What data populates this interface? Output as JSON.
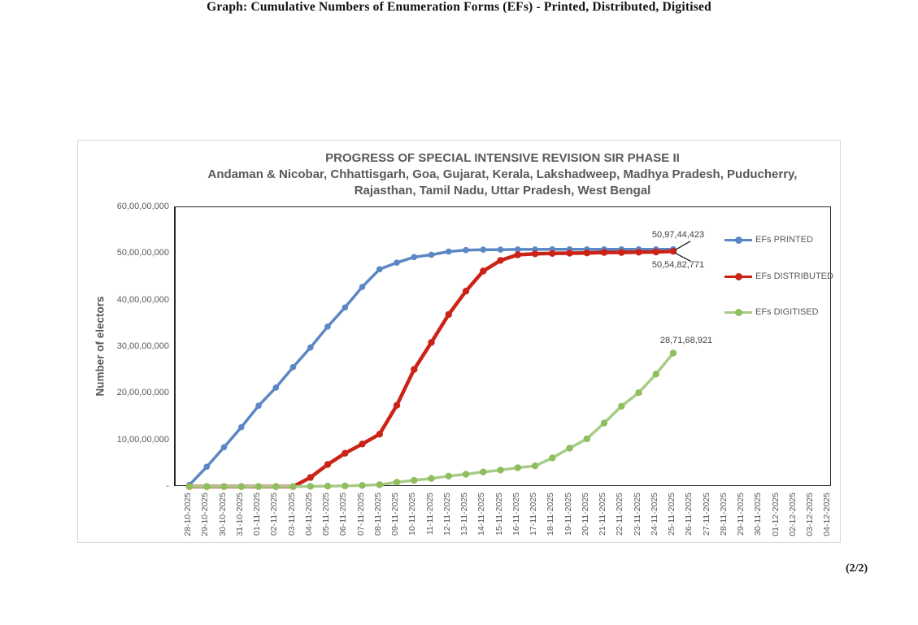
{
  "page": {
    "caption": "Graph: Cumulative Numbers of Enumeration Forms (EFs) - Printed, Distributed, Digitised",
    "page_number": "(2/2)"
  },
  "chart": {
    "title": "PROGRESS OF SPECIAL INTENSIVE REVISION SIR PHASE II",
    "subtitle_line1": "Andaman & Nicobar, Chhattisgarh, Goa, Gujarat, Kerala, Lakshadweep, Madhya Pradesh, Puducherry,",
    "subtitle_line2": "Rajasthan, Tamil Nadu, Uttar Pradesh, West Bengal",
    "y_axis_title": "Number of electors"
  },
  "colors": {
    "printed_line": "#5b87c4",
    "distributed_line": "#cb2317",
    "digitised_line": "#a7cc86",
    "digitised_marker": "#8fbe5e",
    "text_gray": "#595959",
    "axis_border": "#262626",
    "figure_border": "#d9d9d9",
    "leader_line": "#1a1a1a"
  },
  "chart_data": {
    "type": "line",
    "title": "PROGRESS OF SPECIAL INTENSIVE REVISION SIR PHASE II",
    "ylabel": "Number of electors",
    "grid": false,
    "legend_position": "inside-right",
    "ylim_value": [
      0,
      600000000
    ],
    "y_tick_labels": [
      "60,00,00,000",
      "50,00,00,000",
      "40,00,00,000",
      "30,00,00,000",
      "20,00,00,000",
      "10,00,00,000",
      "-"
    ],
    "values_unit": "crore",
    "categories": [
      "28-10-2025",
      "29-10-2025",
      "30-10-2025",
      "31-10-2025",
      "01-11-2025",
      "02-11-2025",
      "03-11-2025",
      "04-11-2025",
      "05-11-2025",
      "06-11-2025",
      "07-11-2025",
      "08-11-2025",
      "09-11-2025",
      "10-11-2025",
      "11-11-2025",
      "12-11-2025",
      "13-11-2025",
      "14-11-2025",
      "15-11-2025",
      "16-11-2025",
      "17-11-2025",
      "18-11-2025",
      "19-11-2025",
      "20-11-2025",
      "21-11-2025",
      "22-11-2025",
      "23-11-2025",
      "24-11-2025",
      "25-11-2025",
      "26-11-2025",
      "27-11-2025",
      "28-11-2025",
      "29-11-2025",
      "30-11-2025",
      "01-12-2025",
      "02-12-2025",
      "03-12-2025",
      "04-12-2025"
    ],
    "series": [
      {
        "name": "EFs PRINTED",
        "color": "#5b87c4",
        "marker_color": "#5b87c4",
        "end_label": "50,97,44,423",
        "end_value": 509744423,
        "values_crore": [
          0.4,
          4.3,
          8.5,
          12.8,
          17.4,
          21.3,
          25.7,
          29.9,
          34.4,
          38.5,
          42.9,
          46.7,
          48.1,
          49.3,
          49.8,
          50.5,
          50.8,
          50.9,
          50.9,
          50.95,
          50.95,
          50.96,
          50.96,
          50.97,
          50.97,
          50.97,
          50.97,
          50.97,
          50.9744423
        ]
      },
      {
        "name": "EFs DISTRIBUTED",
        "color": "#cb2317",
        "marker_color": "#cb2317",
        "end_label": "50,54,82,771",
        "end_value": 505482771,
        "values_crore": [
          0.05,
          0.05,
          0.05,
          0.05,
          0.05,
          0.05,
          0.05,
          2.0,
          4.8,
          7.2,
          9.2,
          11.3,
          17.5,
          25.2,
          31.0,
          37.0,
          42.0,
          46.3,
          48.6,
          49.8,
          50.0,
          50.1,
          50.15,
          50.2,
          50.3,
          50.3,
          50.35,
          50.4,
          50.5482771
        ]
      },
      {
        "name": "EFs DIGITISED",
        "color": "#a7cc86",
        "marker_color": "#8fbe5e",
        "end_label": "28,71,68,921",
        "end_value": 287168921,
        "values_crore": [
          0.05,
          0.05,
          0.05,
          0.05,
          0.05,
          0.05,
          0.05,
          0.1,
          0.15,
          0.2,
          0.3,
          0.45,
          1.0,
          1.4,
          1.8,
          2.3,
          2.7,
          3.2,
          3.6,
          4.1,
          4.5,
          6.2,
          8.3,
          10.3,
          13.7,
          17.3,
          20.2,
          24.2,
          28.7168921
        ]
      }
    ]
  }
}
